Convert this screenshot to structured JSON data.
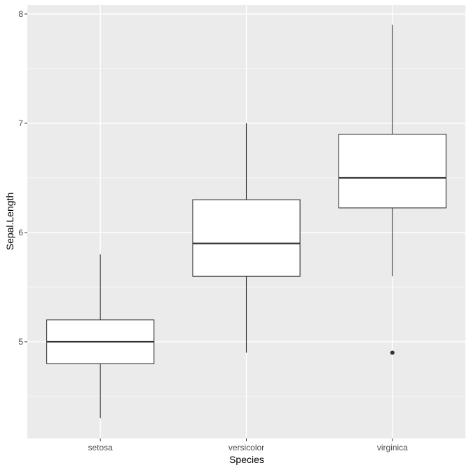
{
  "chart_data": {
    "type": "boxplot",
    "title": "",
    "xlabel": "Species",
    "ylabel": "Sepal.Length",
    "categories": [
      "setosa",
      "versicolor",
      "virginica"
    ],
    "boxes": [
      {
        "category": "setosa",
        "whisker_low": 4.3,
        "q1": 4.8,
        "median": 5.0,
        "q3": 5.2,
        "whisker_high": 5.8,
        "outliers": []
      },
      {
        "category": "versicolor",
        "whisker_low": 4.9,
        "q1": 5.6,
        "median": 5.9,
        "q3": 6.3,
        "whisker_high": 7.0,
        "outliers": []
      },
      {
        "category": "virginica",
        "whisker_low": 5.6,
        "q1": 6.225,
        "median": 6.5,
        "q3": 6.9,
        "whisker_high": 7.9,
        "outliers": [
          4.9
        ]
      }
    ],
    "yticks": [
      5,
      6,
      7,
      8
    ],
    "yminor": [
      4.5,
      5.5,
      6.5,
      7.5
    ],
    "ylim": [
      4.115,
      8.083
    ],
    "grid": true,
    "legend": null
  },
  "style": {
    "panel_bg": "#ebebeb",
    "grid_color": "#ffffff",
    "box_fill": "#ffffff",
    "box_stroke": "#333333",
    "tick_color": "#333333"
  }
}
